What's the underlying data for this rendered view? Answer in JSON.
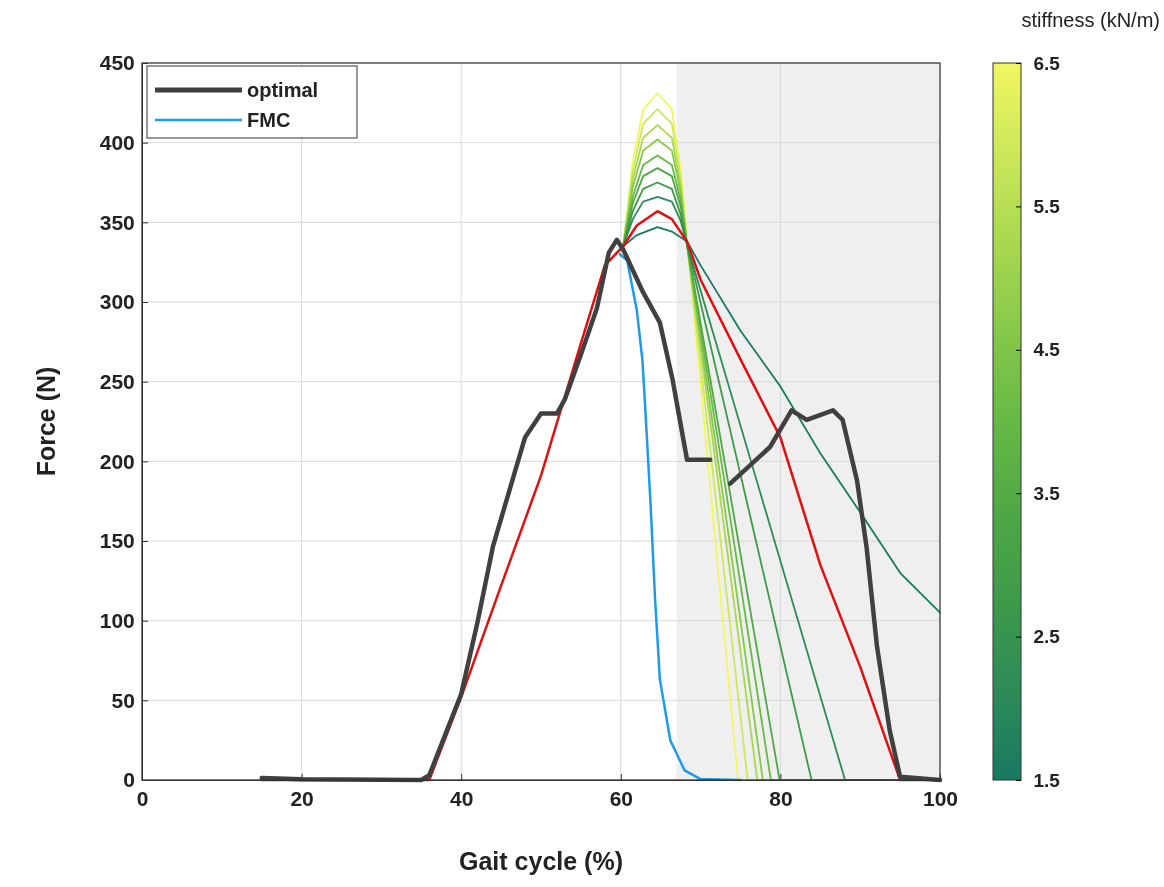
{
  "chart_data": {
    "type": "line",
    "xlabel": "Gait cycle (%)",
    "ylabel": "Force (N)",
    "clabel": "stiffness (kN/m)",
    "xlim": [
      0,
      100
    ],
    "xticks": [
      0,
      20,
      40,
      60,
      80,
      100
    ],
    "ylim": [
      0,
      450
    ],
    "yticks": [
      0,
      50,
      100,
      150,
      200,
      250,
      300,
      350,
      400,
      450
    ],
    "clim": [
      1.5,
      6.5
    ],
    "cticks": [
      1.5,
      2.5,
      3.5,
      4.5,
      5.5,
      6.5
    ],
    "grid": true,
    "legend": "top left",
    "marker": "none",
    "line_style": "solid",
    "bands": [
      {
        "axis": "x",
        "from": 67,
        "to": 100,
        "color": "#efefef"
      }
    ],
    "series": [
      {
        "name": "optimal",
        "color": "#404040",
        "x": [
          15,
          20,
          35,
          36,
          40,
          42,
          44,
          46,
          48,
          50,
          52,
          53,
          55,
          57,
          58.5,
          59.5,
          60.3,
          62.8,
          64.9,
          66.5,
          68.3,
          71.2,
          72.5,
          73.7,
          78.7,
          81.4,
          83.3,
          86.6,
          87.8,
          89.6,
          90.8,
          92.1,
          93.7,
          95,
          100
        ],
        "values": [
          1.3,
          0.5,
          0,
          3,
          54,
          98,
          147,
          181,
          215,
          230,
          230,
          239,
          267,
          296,
          331,
          339,
          333,
          306,
          287,
          251,
          201,
          201,
          null,
          186,
          209,
          232,
          226,
          232,
          226,
          188,
          146,
          84,
          31,
          2,
          0
        ]
      },
      {
        "name": "FMC",
        "color": "#1e9be8",
        "x": [
          59.9,
          60.8,
          62,
          62.7,
          63,
          63.7,
          64.3,
          64.9,
          66.2,
          68,
          70,
          75
        ],
        "values": [
          330,
          326,
          295,
          264,
          239,
          176,
          113,
          63,
          25,
          6,
          0.6,
          0
        ]
      },
      {
        "color": "#e01010",
        "x": [
          15,
          36,
          40,
          45,
          50,
          55,
          58,
          60.3,
          62,
          64.6,
          66.4,
          68.3,
          70,
          75,
          80,
          85,
          90,
          95,
          100
        ],
        "values": [
          0,
          0,
          52,
          122,
          191,
          274,
          323,
          335,
          348,
          357,
          352,
          338,
          314,
          264,
          215,
          135,
          71,
          0,
          0
        ]
      },
      {
        "color": "#177a62",
        "x": [
          60.3,
          62,
          64.6,
          66.5,
          68.3,
          70,
          75,
          80,
          85,
          90,
          95,
          100
        ],
        "values": [
          335,
          342,
          347,
          344,
          338,
          323,
          282,
          247,
          205,
          168,
          130,
          105
        ]
      },
      {
        "color": "#2e8b57",
        "x": [
          60.3,
          61.5,
          62.8,
          64.6,
          66.4,
          67.5,
          68.3,
          78.2,
          88.1,
          100
        ],
        "values": [
          335,
          352,
          363,
          366,
          363,
          351,
          336,
          168,
          0,
          0
        ]
      },
      {
        "color": "#3d9a4a",
        "x": [
          60.3,
          61.5,
          62.8,
          64.6,
          66.4,
          67.5,
          68.3,
          76.1,
          83.9,
          100
        ],
        "values": [
          335,
          357,
          371,
          375,
          371,
          355,
          336,
          168,
          0,
          0
        ]
      },
      {
        "color": "#4fa845",
        "x": [
          60.3,
          61.5,
          62.8,
          64.6,
          66.4,
          67.5,
          68.3,
          74.1,
          79.9,
          100
        ],
        "values": [
          335,
          362,
          379,
          384,
          379,
          360,
          336,
          168,
          0,
          0
        ]
      },
      {
        "color": "#66b944",
        "x": [
          60.3,
          61.5,
          62.8,
          64.6,
          66.4,
          67.5,
          68.3,
          73.6,
          78.8,
          100
        ],
        "values": [
          335,
          366,
          386,
          392,
          386,
          364,
          336,
          168,
          0,
          0
        ]
      },
      {
        "color": "#86c84a",
        "x": [
          60.3,
          61.5,
          62.8,
          64.6,
          66.4,
          67.5,
          68.3,
          73.1,
          77.8,
          100
        ],
        "values": [
          335,
          372,
          395,
          402,
          395,
          369,
          336,
          168,
          0,
          0
        ]
      },
      {
        "color": "#a8d84e",
        "x": [
          60.3,
          61.5,
          62.8,
          64.6,
          66.4,
          67.5,
          68.3,
          72.7,
          77.1,
          100
        ],
        "values": [
          335,
          377,
          403,
          411,
          403,
          373,
          336,
          168,
          0,
          0
        ]
      },
      {
        "color": "#cce85a",
        "x": [
          60.3,
          61.5,
          62.8,
          64.6,
          66.4,
          67.5,
          68.3,
          72.1,
          75.9,
          100
        ],
        "values": [
          335,
          382,
          412,
          421,
          412,
          378,
          336,
          168,
          0,
          0
        ]
      },
      {
        "color": "#f0f760",
        "x": [
          60.3,
          61.5,
          62.8,
          64.6,
          66.4,
          67.5,
          71.5,
          74.7,
          100
        ],
        "values": [
          335,
          388,
          421,
          431,
          421,
          383,
          168,
          0,
          0
        ]
      }
    ]
  }
}
